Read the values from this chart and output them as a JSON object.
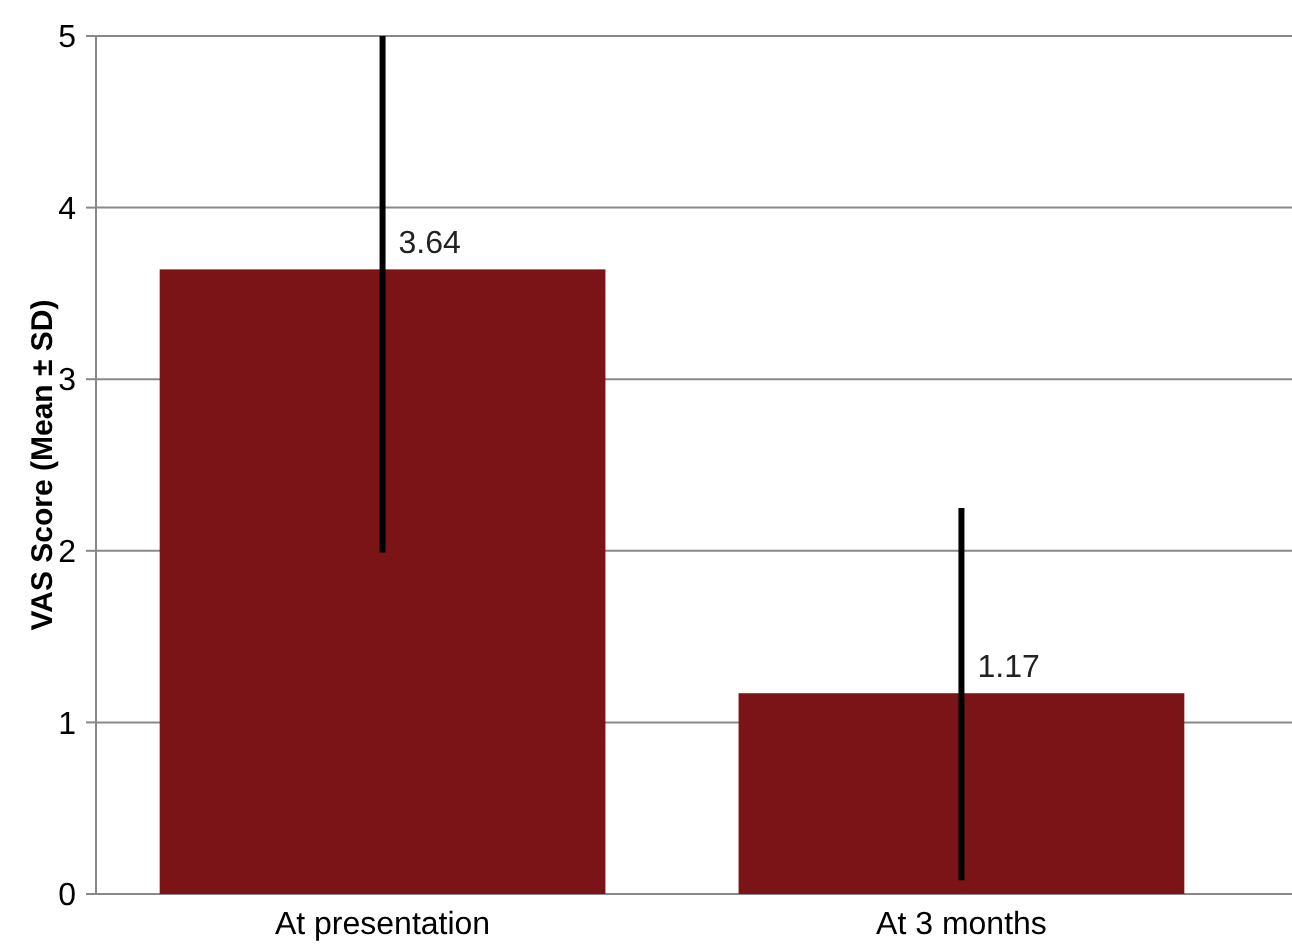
{
  "chart_data": {
    "type": "bar",
    "ylabel": "VAS Score (Mean ± SD)",
    "categories": [
      "At presentation",
      "At 3 months"
    ],
    "values": [
      3.64,
      1.17
    ],
    "color": "#7b1416",
    "errors": [
      [
        1.99,
        5
      ],
      [
        0.08,
        2.25
      ]
    ],
    "data_labels": true,
    "ylim": [
      0,
      5
    ],
    "yticks": [
      0,
      1,
      2,
      3,
      4,
      5
    ],
    "grid": "y"
  }
}
